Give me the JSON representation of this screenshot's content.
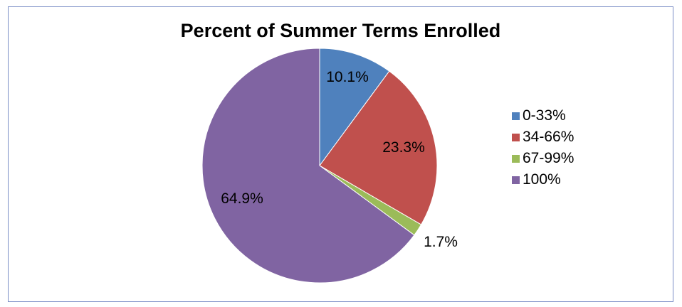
{
  "chart_data": {
    "type": "pie",
    "title": "Percent of Summer Terms Enrolled",
    "slices": [
      {
        "label": "0-33%",
        "value": 10.1,
        "display": "10.1%",
        "color": "#4f81bd"
      },
      {
        "label": "34-66%",
        "value": 23.3,
        "display": "23.3%",
        "color": "#c0504d"
      },
      {
        "label": "67-99%",
        "value": 1.7,
        "display": "1.7%",
        "color": "#9bbb59"
      },
      {
        "label": "100%",
        "value": 64.9,
        "display": "64.9%",
        "color": "#8064a2"
      }
    ],
    "legend_position": "right",
    "start_angle": "12 o'clock",
    "direction": "clockwise"
  }
}
